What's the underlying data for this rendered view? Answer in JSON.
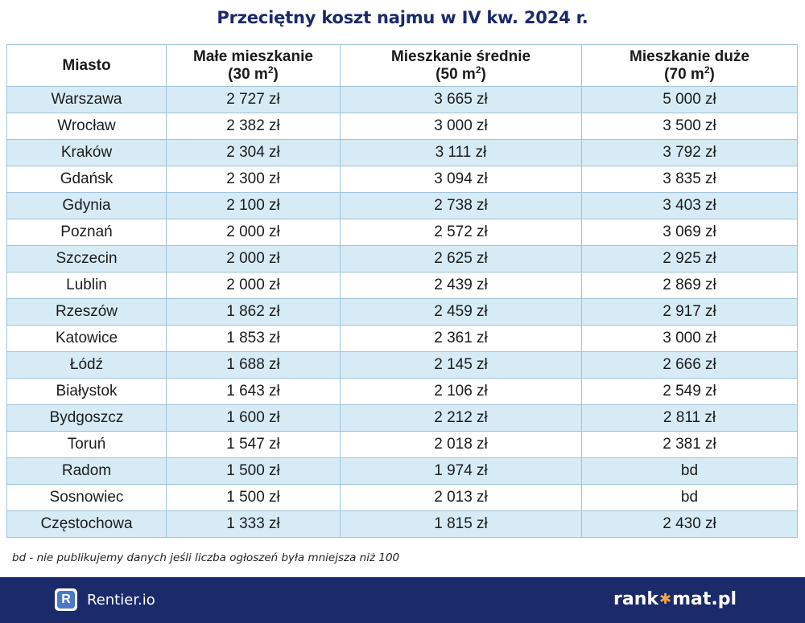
{
  "title": "Przeciętny koszt najmu w IV kw. 2024 r.",
  "table": {
    "headers": [
      {
        "line1": "Miasto",
        "line2": "",
        "unit_sup": "",
        "line2_end": ""
      },
      {
        "line1": "Małe mieszkanie",
        "line2": "(30 m",
        "unit_sup": "2",
        "line2_end": ")"
      },
      {
        "line1": "Mieszkanie średnie",
        "line2": "(50 m",
        "unit_sup": "2",
        "line2_end": ")"
      },
      {
        "line1": "Mieszkanie duże",
        "line2": "(70 m",
        "unit_sup": "2",
        "line2_end": ")"
      }
    ],
    "rows": [
      [
        "Warszawa",
        "2 727 zł",
        "3 665 zł",
        "5 000 zł"
      ],
      [
        "Wrocław",
        "2 382 zł",
        "3 000 zł",
        "3 500 zł"
      ],
      [
        "Kraków",
        "2 304 zł",
        "3 111 zł",
        "3 792 zł"
      ],
      [
        "Gdańsk",
        "2 300 zł",
        "3 094 zł",
        "3 835 zł"
      ],
      [
        "Gdynia",
        "2 100 zł",
        "2 738 zł",
        "3 403 zł"
      ],
      [
        "Poznań",
        "2 000 zł",
        "2 572 zł",
        "3 069 zł"
      ],
      [
        "Szczecin",
        "2 000 zł",
        "2 625 zł",
        "2 925 zł"
      ],
      [
        "Lublin",
        "2 000 zł",
        "2 439 zł",
        "2 869 zł"
      ],
      [
        "Rzeszów",
        "1 862 zł",
        "2 459 zł",
        "2 917 zł"
      ],
      [
        "Katowice",
        "1 853 zł",
        "2 361 zł",
        "3 000 zł"
      ],
      [
        "Łódź",
        "1 688 zł",
        "2 145 zł",
        "2 666 zł"
      ],
      [
        "Białystok",
        "1 643 zł",
        "2 106 zł",
        "2 549 zł"
      ],
      [
        "Bydgoszcz",
        "1 600 zł",
        "2 212 zł",
        "2 811 zł"
      ],
      [
        "Toruń",
        "1 547 zł",
        "2 018 zł",
        "2 381 zł"
      ],
      [
        "Radom",
        "1 500 zł",
        "1 974 zł",
        "bd"
      ],
      [
        "Sosnowiec",
        "1 500 zł",
        "2 013 zł",
        "bd"
      ],
      [
        "Częstochowa",
        "1 333 zł",
        "1 815 zł",
        "2 430 zł"
      ]
    ]
  },
  "note": "bd - nie publikujemy danych jeśli liczba ogłoszeń była mniejsza niż 100",
  "footer": {
    "rentier_icon_letter": "R",
    "rentier_label": "Rentier.io",
    "rankomat_prefix": "rank",
    "rankomat_star": "✱",
    "rankomat_suffix": "mat.pl"
  },
  "colors": {
    "title": "#1b2a6b",
    "footer_bg": "#1b2a6b",
    "row_stripe": "#d6ebf6",
    "border": "#9ec3d9",
    "rankomat_star": "#f4a640",
    "rentier_logo": "#4a78c8"
  },
  "icons": {
    "rentier_logo": "rentier-logo-icon",
    "rankomat_star": "star-icon"
  }
}
